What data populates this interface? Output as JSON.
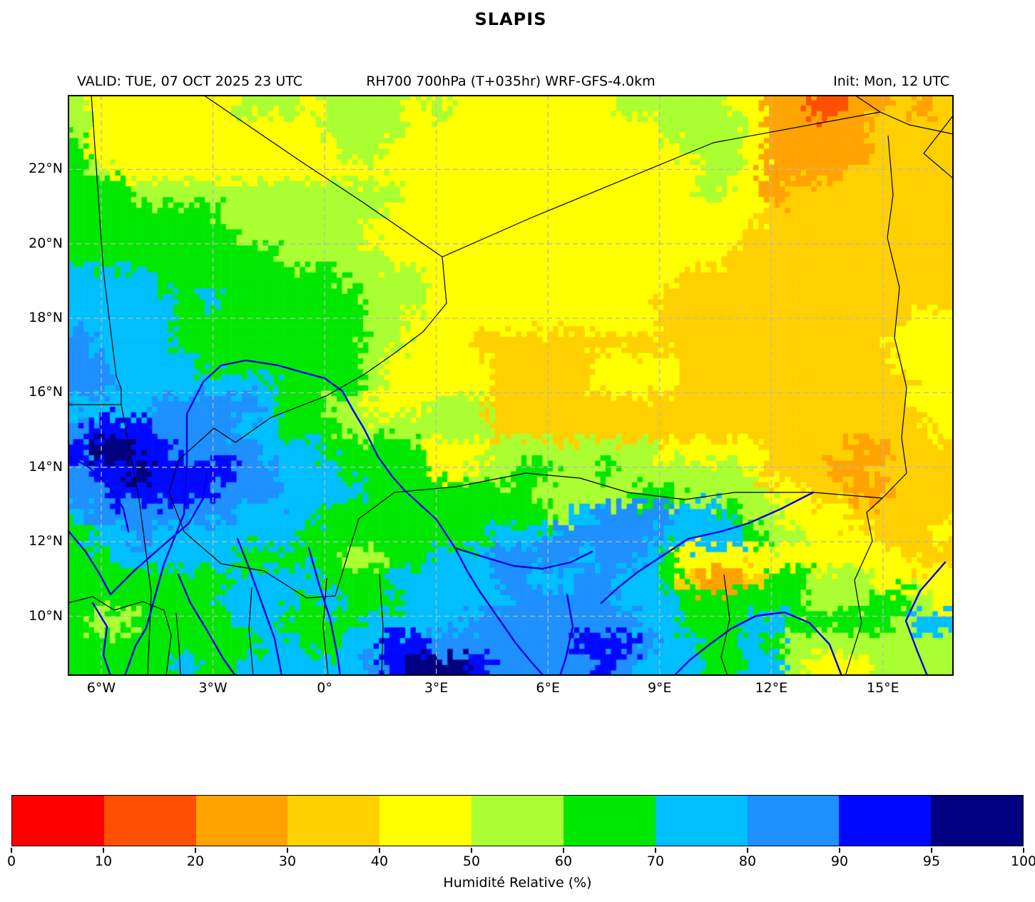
{
  "title": "SLAPIS",
  "header": {
    "valid": "VALID: TUE, 07 OCT 2025 23 UTC",
    "product": "RH700 700hPa (T+035hr) WRF-GFS-4.0km",
    "init": "Init: Mon, 12 UTC"
  },
  "chart_data": {
    "type": "heatmap",
    "title": "SLAPIS",
    "subtitle": "RH700 700hPa (T+035hr) WRF-GFS-4.0km",
    "valid_time": "TUE, 07 OCT 2025 23 UTC",
    "init_time": "Mon, 12 UTC",
    "legend_position": "bottom",
    "grid": "dashed",
    "axes": {
      "lon_min": -6.9,
      "lon_max": 16.9,
      "lat_min": 8.4,
      "lat_max": 24.0,
      "x_ticks": [
        {
          "value": -6,
          "label": "6°W"
        },
        {
          "value": -3,
          "label": "3°W"
        },
        {
          "value": 0,
          "label": "0°"
        },
        {
          "value": 3,
          "label": "3°E"
        },
        {
          "value": 6,
          "label": "6°E"
        },
        {
          "value": 9,
          "label": "9°E"
        },
        {
          "value": 12,
          "label": "12°E"
        },
        {
          "value": 15,
          "label": "15°E"
        }
      ],
      "y_ticks": [
        {
          "value": 22,
          "label": "22°N"
        },
        {
          "value": 20,
          "label": "20°N"
        },
        {
          "value": 18,
          "label": "18°N"
        },
        {
          "value": 16,
          "label": "16°N"
        },
        {
          "value": 14,
          "label": "14°N"
        },
        {
          "value": 12,
          "label": "12°N"
        },
        {
          "value": 10,
          "label": "10°N"
        }
      ]
    },
    "colorbar": {
      "label": "Humidité Relative (%)",
      "levels": [
        0,
        10,
        20,
        30,
        40,
        50,
        60,
        70,
        80,
        90,
        95,
        100
      ],
      "tick_labels": [
        "0",
        "10",
        "20",
        "30",
        "40",
        "50",
        "60",
        "70",
        "80",
        "90",
        "95",
        "100"
      ],
      "colors": [
        "#fe0000",
        "#ff4f00",
        "#ffa300",
        "#ffd000",
        "#ffff00",
        "#aaff32",
        "#00e800",
        "#00bfff",
        "#1e90ff",
        "#0008ff",
        "#000080"
      ]
    },
    "rh_grid": {
      "rows": 27,
      "cols": 42,
      "legend": "Relative-humidity field sampled on a 42x27 grid. Row 0 = north (lat 24.0N), col 0 = west (lon 6.9W). Each character indexes colorbar.colors: 0..9 and A=10 (i.e. RH bands 0-10,10-20,...,90-95,95-100 %). Spaces are cosmetic.",
      "values": [
        "544444 445554 555545 444444 445555 544221 122323",
        "544444 444444 555544 444444 444455 554222 223333",
        "644444 444444 455444 444444 444445 554222 223333",
        "654444 444444 444444 444444 444444 554222 233333",
        "666555 555555 555544 444444 444444 544233 333333",
        "666666 655555 555444 444444 444444 444333 333333",
        "666666 665555 554444 444444 444444 443333 333333",
        "666666 666655 555444 444444 444444 433333 333333",
        "777766 666666 655554 444444 444443 333333 333333",
        "777776 766666 665554 444444 444433 333333 333333",
        "777776 666666 665544 444444 444433 333333 333344",
        "877776 666666 665544 433333 333333 333333 333444",
        "887777 666666 665444 443333 344443 333333 333444",
        "887777 777766 665444 443333 344443 333333 333344",
        "777788 888766 554445 553333 333333 333333 333344",
        "899988 887766 655555 553333 333333 333333 333334",
        "9AA998 888777 666664 445555 555544 444333 322333",
        "899A99 998877 766664 455665 565555 554333 223333",
        "889999 988877 776666 666655 555665 555443 322333",
        "788888 887777 666666 666665 788887 765544 433333",
        "677877 777776 666666 667778 888877 776554 443334",
        "667777 776666 655667 778888 788764 444444 444433",
        "666666 667777 666777 778877 887763 223665 554444",
        "666666 677776 766677 777888 887776 666665 556654",
        "655666 667766 667777 788888 888776 667766 666577",
        "666666 666776 677998 888888 999877 667655 555555",
        "666667 667777 7789AA A98888 898777 667754 445555"
      ]
    }
  },
  "colors": {
    "background": "#ffffff",
    "frame": "#000000",
    "country_border": "#000000",
    "river": "#0000e8",
    "grid_line": "#b8b8b8",
    "text": "#000000"
  }
}
